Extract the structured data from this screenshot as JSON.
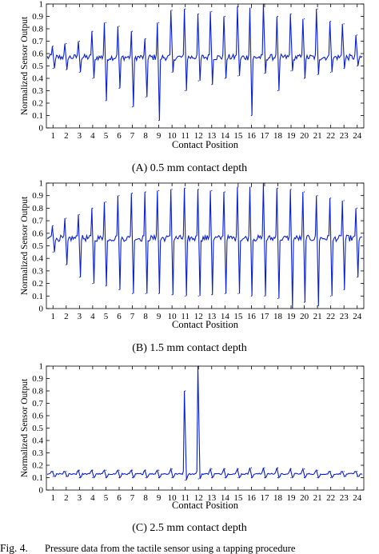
{
  "chart_data": [
    {
      "type": "line",
      "panel": "A",
      "caption": "(A) 0.5 mm contact depth",
      "xlabel": "Contact Position",
      "ylabel": "Normalized Sensor Output",
      "ylim": [
        0,
        1
      ],
      "yticks": [
        "0",
        "0.1",
        "0.2",
        "0.3",
        "0.4",
        "0.5",
        "0.6",
        "0.7",
        "0.8",
        "0.9",
        "1"
      ],
      "categories": [
        "1",
        "2",
        "3",
        "4",
        "5",
        "6",
        "7",
        "8",
        "9",
        "10",
        "11",
        "12",
        "13",
        "14",
        "15",
        "16",
        "17",
        "18",
        "19",
        "20",
        "21",
        "22",
        "23",
        "24"
      ],
      "baseline": 0.57,
      "series": [
        {
          "color": "#0a1fd6",
          "peaks": [
            0.66,
            0.68,
            0.7,
            0.78,
            0.85,
            0.82,
            0.78,
            0.72,
            0.85,
            0.95,
            0.96,
            0.92,
            0.94,
            0.9,
            0.98,
            0.97,
            1.0,
            0.9,
            0.92,
            0.88,
            0.96,
            0.86,
            0.84,
            0.75
          ],
          "troughs": [
            0.48,
            0.47,
            0.45,
            0.4,
            0.22,
            0.32,
            0.17,
            0.25,
            0.06,
            0.45,
            0.3,
            0.38,
            0.35,
            0.4,
            0.42,
            0.1,
            0.44,
            0.3,
            0.46,
            0.4,
            0.43,
            0.45,
            0.48,
            0.5
          ]
        }
      ]
    },
    {
      "type": "line",
      "panel": "B",
      "caption": "(B) 1.5 mm contact depth",
      "xlabel": "Contact Position",
      "ylabel": "Normalized Sensor Output",
      "ylim": [
        0,
        1
      ],
      "yticks": [
        "0",
        "0.1",
        "0.2",
        "0.3",
        "0.4",
        "0.5",
        "0.6",
        "0.7",
        "0.8",
        "0.9",
        "1"
      ],
      "categories": [
        "1",
        "2",
        "3",
        "4",
        "5",
        "6",
        "7",
        "8",
        "9",
        "10",
        "11",
        "12",
        "13",
        "14",
        "15",
        "16",
        "17",
        "18",
        "19",
        "20",
        "21",
        "22",
        "23",
        "24"
      ],
      "baseline": 0.56,
      "series": [
        {
          "color": "#0a1fd6",
          "peaks": [
            0.66,
            0.72,
            0.75,
            0.8,
            0.85,
            0.9,
            0.92,
            0.93,
            0.94,
            0.95,
            0.96,
            0.95,
            0.94,
            0.93,
            0.97,
            0.97,
            1.0,
            0.96,
            0.95,
            0.93,
            0.9,
            0.88,
            0.86,
            0.8
          ],
          "troughs": [
            0.45,
            0.35,
            0.25,
            0.2,
            0.18,
            0.15,
            0.12,
            0.12,
            0.12,
            0.11,
            0.1,
            0.1,
            0.11,
            0.12,
            0.12,
            0.1,
            0.1,
            0.08,
            0.0,
            0.05,
            0.02,
            0.1,
            0.15,
            0.25
          ]
        }
      ]
    },
    {
      "type": "line",
      "panel": "C",
      "caption": "(C) 2.5 mm contact depth",
      "xlabel": "Contact Position",
      "ylabel": "Normalized Sensor Output",
      "ylim": [
        0,
        1
      ],
      "yticks": [
        "0",
        "0.1",
        "0.2",
        "0.3",
        "0.4",
        "0.5",
        "0.6",
        "0.7",
        "0.8",
        "0.9",
        "1"
      ],
      "categories": [
        "1",
        "2",
        "3",
        "4",
        "5",
        "6",
        "7",
        "8",
        "9",
        "10",
        "11",
        "12",
        "13",
        "14",
        "15",
        "16",
        "17",
        "18",
        "19",
        "20",
        "21",
        "22",
        "23",
        "24"
      ],
      "baseline": 0.13,
      "series": [
        {
          "color": "#0a1fd6",
          "peaks": [
            0.15,
            0.15,
            0.16,
            0.16,
            0.16,
            0.16,
            0.16,
            0.16,
            0.16,
            0.17,
            0.8,
            1.0,
            0.17,
            0.17,
            0.17,
            0.18,
            0.18,
            0.18,
            0.17,
            0.17,
            0.16,
            0.15,
            0.15,
            0.15
          ],
          "troughs": [
            0.11,
            0.11,
            0.1,
            0.1,
            0.1,
            0.1,
            0.1,
            0.1,
            0.1,
            0.1,
            0.08,
            0.09,
            0.1,
            0.1,
            0.1,
            0.1,
            0.1,
            0.1,
            0.1,
            0.1,
            0.1,
            0.1,
            0.11,
            0.11
          ]
        }
      ]
    }
  ],
  "caption_line": {
    "fig_label": "Fig. 4.",
    "text": "Pressure data from the tactile sensor using a tapping procedure"
  }
}
